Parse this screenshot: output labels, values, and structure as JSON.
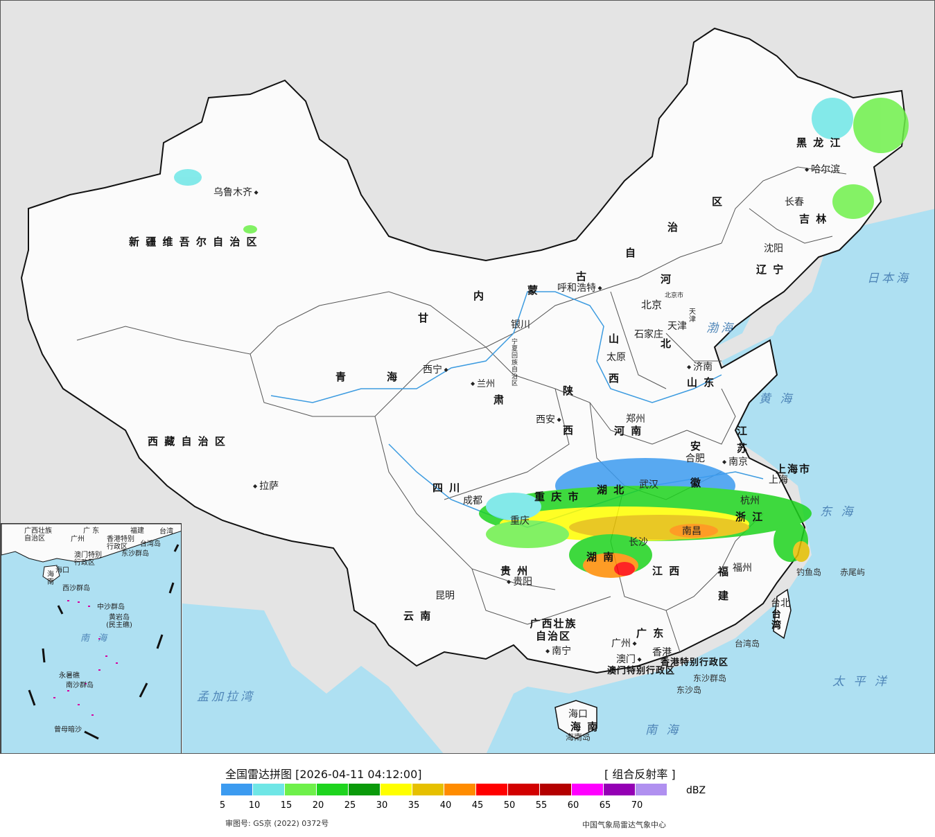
{
  "map": {
    "region_labels": [
      {
        "id": "xinjiang",
        "text": "新 疆 维 吾 尔 自 治 区"
      },
      {
        "id": "xizang",
        "text": "西 藏 自 治 区"
      },
      {
        "id": "qinghai1",
        "text": "青"
      },
      {
        "id": "qinghai2",
        "text": "海"
      },
      {
        "id": "gansu1",
        "text": "甘"
      },
      {
        "id": "gansu2",
        "text": "肃"
      },
      {
        "id": "nmg1",
        "text": "内"
      },
      {
        "id": "nmg2",
        "text": "蒙"
      },
      {
        "id": "nmg3",
        "text": "古"
      },
      {
        "id": "nmg4",
        "text": "自"
      },
      {
        "id": "nmg5",
        "text": "治"
      },
      {
        "id": "nmg6",
        "text": "区"
      },
      {
        "id": "hlj",
        "text": "黑 龙 江"
      },
      {
        "id": "jilin",
        "text": "吉 林"
      },
      {
        "id": "liaoning",
        "text": "辽 宁"
      },
      {
        "id": "hebei1",
        "text": "河"
      },
      {
        "id": "hebei2",
        "text": "北"
      },
      {
        "id": "shanxi1",
        "text": "山"
      },
      {
        "id": "shanxi2",
        "text": "西"
      },
      {
        "id": "shandong",
        "text": "山 东"
      },
      {
        "id": "shaanxi1",
        "text": "陕"
      },
      {
        "id": "shaanxi2",
        "text": "西"
      },
      {
        "id": "henan",
        "text": "河 南"
      },
      {
        "id": "sichuan",
        "text": "四 川"
      },
      {
        "id": "chongqing",
        "text": "重 庆 市"
      },
      {
        "id": "hubei",
        "text": "湖 北"
      },
      {
        "id": "anhui1",
        "text": "安"
      },
      {
        "id": "anhui2",
        "text": "徽"
      },
      {
        "id": "jiangsu1",
        "text": "江"
      },
      {
        "id": "jiangsu2",
        "text": "苏"
      },
      {
        "id": "shanghai",
        "text": "上海市"
      },
      {
        "id": "zhejiang",
        "text": "浙 江"
      },
      {
        "id": "hunan",
        "text": "湖 南"
      },
      {
        "id": "jiangxi",
        "text": "江 西"
      },
      {
        "id": "guizhou",
        "text": "贵 州"
      },
      {
        "id": "yunnan",
        "text": "云 南"
      },
      {
        "id": "guangxi",
        "text": "广西壮族 自治区"
      },
      {
        "id": "guangdong",
        "text": "广 东"
      },
      {
        "id": "fujian1",
        "text": "福"
      },
      {
        "id": "fujian2",
        "text": "建"
      },
      {
        "id": "taiwan",
        "text": "台湾"
      },
      {
        "id": "hainan",
        "text": "海 南"
      },
      {
        "id": "ningxia",
        "text": "宁夏回族自治区"
      },
      {
        "id": "beijing",
        "text": "北京市"
      },
      {
        "id": "tianjin",
        "text": "天津"
      },
      {
        "id": "hk",
        "text": "香港特别行政区"
      },
      {
        "id": "macau",
        "text": "澳门特别行政区"
      }
    ],
    "cities": [
      {
        "id": "urumqi",
        "text": "乌鲁木齐"
      },
      {
        "id": "lhasa",
        "text": "拉萨"
      },
      {
        "id": "xining",
        "text": "西宁"
      },
      {
        "id": "lanzhou",
        "text": "兰州"
      },
      {
        "id": "yinchuan",
        "text": "银川"
      },
      {
        "id": "hohhot",
        "text": "呼和浩特"
      },
      {
        "id": "beijing_c",
        "text": "北京"
      },
      {
        "id": "tianjin_c",
        "text": "天津"
      },
      {
        "id": "shijiazhuang",
        "text": "石家庄"
      },
      {
        "id": "taiyuan",
        "text": "太原"
      },
      {
        "id": "jinan",
        "text": "济南"
      },
      {
        "id": "zhengzhou",
        "text": "郑州"
      },
      {
        "id": "xian",
        "text": "西安"
      },
      {
        "id": "chengdu",
        "text": "成都"
      },
      {
        "id": "chongqing_c",
        "text": "重庆"
      },
      {
        "id": "wuhan",
        "text": "武汉"
      },
      {
        "id": "hefei",
        "text": "合肥"
      },
      {
        "id": "nanjing",
        "text": "南京"
      },
      {
        "id": "shanghai_c",
        "text": "上海"
      },
      {
        "id": "hangzhou",
        "text": "杭州"
      },
      {
        "id": "nanchang",
        "text": "南昌"
      },
      {
        "id": "changsha",
        "text": "长沙"
      },
      {
        "id": "guiyang",
        "text": "贵阳"
      },
      {
        "id": "kunming",
        "text": "昆明"
      },
      {
        "id": "nanning",
        "text": "南宁"
      },
      {
        "id": "guangzhou",
        "text": "广州"
      },
      {
        "id": "hongkong",
        "text": "香港"
      },
      {
        "id": "macao",
        "text": "澳门"
      },
      {
        "id": "fuzhou",
        "text": "福州"
      },
      {
        "id": "taibei",
        "text": "台北"
      },
      {
        "id": "haikou",
        "text": "海口"
      },
      {
        "id": "shenyang",
        "text": "沈阳"
      },
      {
        "id": "changchun",
        "text": "长春"
      },
      {
        "id": "harbin",
        "text": "哈尔滨"
      }
    ],
    "seas": [
      {
        "id": "bohai",
        "text": "渤海"
      },
      {
        "id": "huanghai",
        "text": "黄 海"
      },
      {
        "id": "donghai",
        "text": "东 海"
      },
      {
        "id": "nanhai",
        "text": "南 海"
      },
      {
        "id": "taipingyang",
        "text": "太 平 洋"
      },
      {
        "id": "ribenhai",
        "text": "日本海"
      },
      {
        "id": "mengjiala",
        "text": "孟加拉湾"
      }
    ],
    "islands": [
      {
        "id": "diaoyu",
        "text": "钓鱼岛"
      },
      {
        "id": "chiwei",
        "text": "赤尾屿"
      },
      {
        "id": "taiwan_dao",
        "text": "台湾岛"
      },
      {
        "id": "hainan_dao",
        "text": "海南岛"
      },
      {
        "id": "dongsha_qd",
        "text": "东沙群岛"
      },
      {
        "id": "dongsha_d",
        "text": "东沙岛"
      }
    ],
    "inset": {
      "labels": [
        {
          "id": "i_gx",
          "text": "广西壮族 自治区"
        },
        {
          "id": "i_gd",
          "text": "广 东"
        },
        {
          "id": "i_fj",
          "text": "福建"
        },
        {
          "id": "i_tw",
          "text": "台湾"
        },
        {
          "id": "i_gz",
          "text": "广州"
        },
        {
          "id": "i_hk",
          "text": "香港特别 行政区"
        },
        {
          "id": "i_mo",
          "text": "澳门特别 行政区"
        },
        {
          "id": "i_taiwandao",
          "text": "台湾岛"
        },
        {
          "id": "i_dsqd",
          "text": "东沙群岛"
        },
        {
          "id": "i_hn",
          "text": "海 南"
        },
        {
          "id": "i_xsqd",
          "text": "西沙群岛"
        },
        {
          "id": "i_zsqd",
          "text": "中沙群岛"
        },
        {
          "id": "i_hyd",
          "text": "黄岩岛 (民主礁)"
        },
        {
          "id": "i_nh",
          "text": "南 海"
        },
        {
          "id": "i_nsqd",
          "text": "南沙群岛"
        },
        {
          "id": "i_yxj",
          "text": "永暑礁"
        },
        {
          "id": "i_zmas",
          "text": "曾母暗沙"
        },
        {
          "id": "i_hk2",
          "text": "海口"
        }
      ]
    }
  },
  "legend": {
    "title": "全国雷达拼图 [2026-04-11 04:12:00]",
    "product": "[ 组合反射率 ]",
    "unit": "dBZ",
    "colors": [
      "#3c9bf0",
      "#6fe6e6",
      "#6ef04a",
      "#1ed41e",
      "#0a9a0a",
      "#ffff00",
      "#e6c000",
      "#ff8c00",
      "#ff0000",
      "#d20000",
      "#b40000",
      "#ff00ff",
      "#9400b4",
      "#b090f0"
    ],
    "ticks": [
      "5",
      "10",
      "15",
      "20",
      "25",
      "30",
      "35",
      "40",
      "45",
      "50",
      "55",
      "60",
      "65",
      "70"
    ],
    "approval": "审图号: GS京 (2022) 0372号",
    "org": "中国气象局雷达气象中心"
  }
}
